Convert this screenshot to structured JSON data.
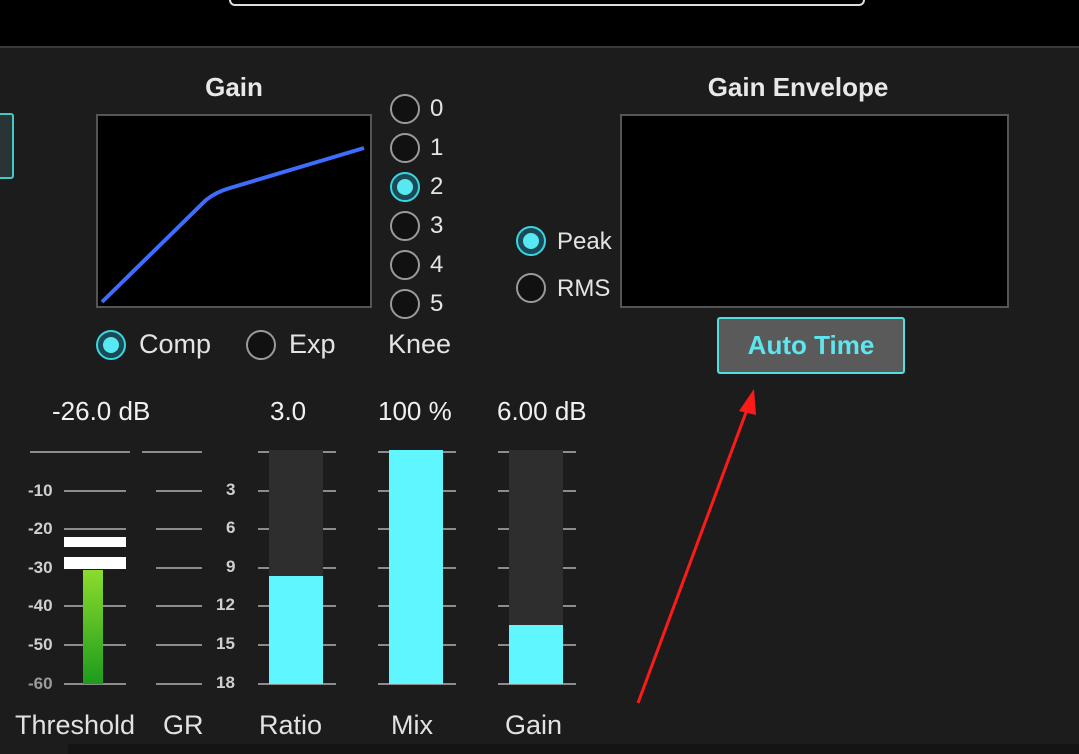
{
  "gain_section": {
    "title": "Gain",
    "curve_color": "#3d6dff",
    "mode_options": [
      {
        "label": "Comp",
        "selected": true
      },
      {
        "label": "Exp",
        "selected": false
      }
    ]
  },
  "knee": {
    "label": "Knee",
    "options": [
      "0",
      "1",
      "2",
      "3",
      "4",
      "5"
    ],
    "selected": "2"
  },
  "detector": {
    "options": [
      {
        "label": "Peak",
        "selected": true
      },
      {
        "label": "RMS",
        "selected": false
      }
    ]
  },
  "gain_envelope": {
    "title": "Gain Envelope",
    "auto_time_label": "Auto Time"
  },
  "threshold": {
    "readout": "-26.0 dB",
    "label": "Threshold",
    "scale": [
      "-10",
      "-20",
      "-30",
      "-40",
      "-50",
      "-60"
    ]
  },
  "gr": {
    "label": "GR",
    "scale": [
      "3",
      "6",
      "9",
      "12",
      "15",
      "18"
    ]
  },
  "ratio": {
    "readout": "3.0",
    "label": "Ratio",
    "fill_fraction": 0.46
  },
  "mix": {
    "readout": "100 %",
    "label": "Mix",
    "fill_fraction": 1.0
  },
  "gain": {
    "readout": "6.00 dB",
    "label": "Gain",
    "fill_fraction": 0.25
  },
  "colors": {
    "accent": "#5ff6ff",
    "radio_selected": "#37d6e3",
    "meter_green": "#4cc01a",
    "annotation_arrow": "#ff1a1a"
  }
}
